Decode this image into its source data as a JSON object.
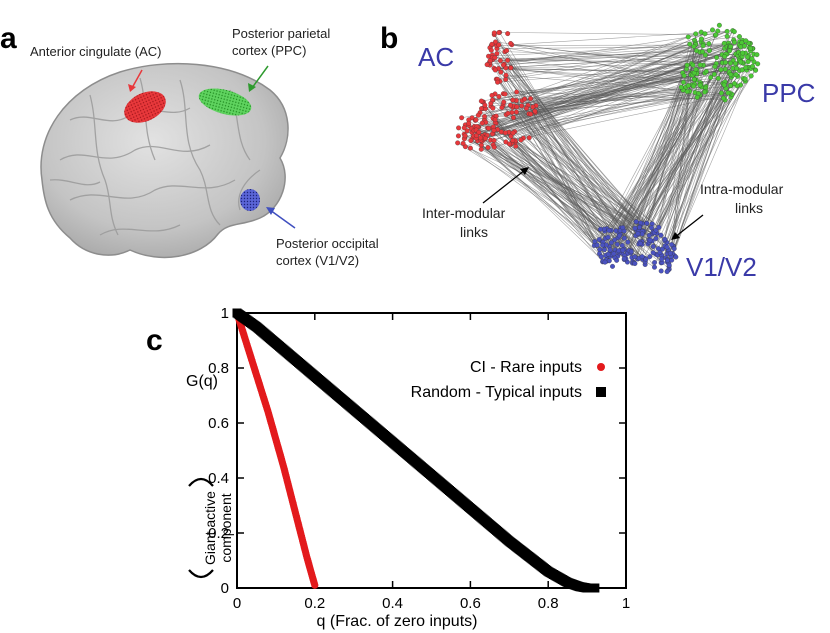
{
  "panel_a": {
    "letter": "a",
    "labels": {
      "ac_line1": "Anterior cingulate (AC)",
      "ppc_line1": "Posterior parietal",
      "ppc_line2": "cortex (PPC)",
      "v1_line1": "Posterior occipital",
      "v1_line2": "cortex (V1/V2)"
    },
    "colors": {
      "ac": "#e8383b",
      "ppc": "#3cc03c",
      "v1": "#3f4fbf"
    }
  },
  "panel_b": {
    "letter": "b",
    "modules": {
      "ac": "AC",
      "ppc": "PPC",
      "v1": "V1/V2"
    },
    "annotations": {
      "inter_line1": "Inter-modular",
      "inter_line2": "links",
      "intra_line1": "Intra-modular",
      "intra_line2": "links"
    },
    "colors": {
      "ac": "#e8383b",
      "ppc": "#4cc935",
      "v1": "#4a52c0",
      "label": "#3a3aa8"
    }
  },
  "panel_c": {
    "letter": "c",
    "ylabel_top": "G(q)",
    "ylabel_line1": "Giant active",
    "ylabel_line2": "component",
    "xlabel": "q (Frac. of zero inputs)",
    "legend": {
      "ci": "CI - Rare inputs",
      "random": "Random - Typical inputs"
    }
  },
  "chart_data": {
    "type": "scatter",
    "title": "",
    "xlabel": "q (Frac. of zero inputs)",
    "ylabel": "G(q)",
    "xlim": [
      0,
      1
    ],
    "ylim": [
      0,
      1
    ],
    "xticks": [
      "0",
      "0.2",
      "0.4",
      "0.6",
      "0.8",
      "1"
    ],
    "yticks": [
      "0",
      "0.2",
      "0.4",
      "0.6",
      "0.8",
      "1"
    ],
    "legend_position": "top-right",
    "series": [
      {
        "name": "CI - Rare inputs",
        "color": "#e31a1c",
        "marker": "circle",
        "x": [
          0,
          0.02,
          0.04,
          0.06,
          0.08,
          0.1,
          0.12,
          0.14,
          0.16,
          0.18,
          0.2
        ],
        "y": [
          1.0,
          0.91,
          0.82,
          0.73,
          0.64,
          0.54,
          0.44,
          0.33,
          0.22,
          0.11,
          0.01
        ]
      },
      {
        "name": "Random - Typical inputs",
        "color": "#000000",
        "marker": "square",
        "x": [
          0,
          0.05,
          0.1,
          0.2,
          0.3,
          0.4,
          0.5,
          0.6,
          0.7,
          0.8,
          0.85,
          0.88,
          0.9,
          0.92
        ],
        "y": [
          1.0,
          0.95,
          0.89,
          0.77,
          0.65,
          0.53,
          0.41,
          0.29,
          0.17,
          0.06,
          0.02,
          0.005,
          0.0,
          0.0
        ]
      }
    ]
  }
}
